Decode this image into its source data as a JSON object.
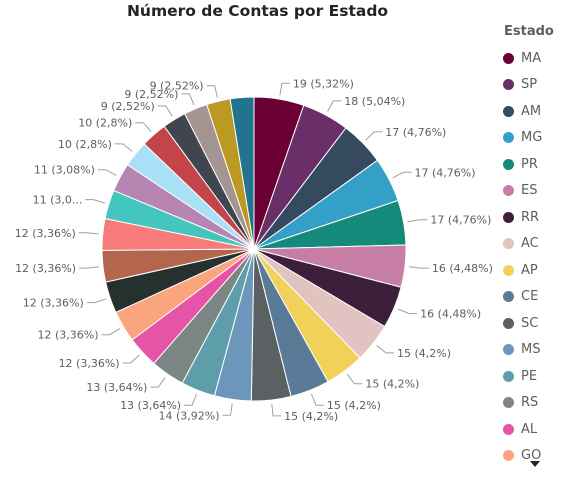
{
  "chart_data": {
    "type": "pie",
    "title": "Número de Contas por Estado",
    "legend_title": "Estado",
    "legend_position": "right",
    "slices": [
      {
        "label": "MA",
        "value": 19,
        "pct": "5,32%",
        "color": "#6b0035",
        "text": "19 (5,32%)"
      },
      {
        "label": "SP",
        "value": 18,
        "pct": "5,04%",
        "color": "#6a2f68",
        "text": "18 (5,04%)"
      },
      {
        "label": "AM",
        "value": 17,
        "pct": "4,76%",
        "color": "#354a5e",
        "text": "17 (4,76%)"
      },
      {
        "label": "MG",
        "value": 17,
        "pct": "4,76%",
        "color": "#34a0c8",
        "text": "17 (4,76%)"
      },
      {
        "label": "PR",
        "value": 17,
        "pct": "4,76%",
        "color": "#138a7a",
        "text": "17 (4,76%)"
      },
      {
        "label": "ES",
        "value": 16,
        "pct": "4,48%",
        "color": "#c77ea6",
        "text": "16 (4,48%)"
      },
      {
        "label": "RR",
        "value": 16,
        "pct": "4,48%",
        "color": "#3e1f3b",
        "text": "16 (4,48%)"
      },
      {
        "label": "AC",
        "value": 15,
        "pct": "4,2%",
        "color": "#e1c3c2",
        "text": "15 (4,2%)"
      },
      {
        "label": "AP",
        "value": 15,
        "pct": "4,2%",
        "color": "#f2d15a",
        "text": "15 (4,2%)"
      },
      {
        "label": "CE",
        "value": 15,
        "pct": "4,2%",
        "color": "#597b98",
        "text": "15 (4,2%)"
      },
      {
        "label": "SC",
        "value": 15,
        "pct": "4,2%",
        "color": "#5b6162",
        "text": "15 (4,2%)"
      },
      {
        "label": "MS",
        "value": 14,
        "pct": "3,92%",
        "color": "#6d96bd",
        "text": "14 (3,92%)"
      },
      {
        "label": "PE",
        "value": 13,
        "pct": "3,64%",
        "color": "#5e9eaa",
        "text": "13 (3,64%)"
      },
      {
        "label": "RS",
        "value": 13,
        "pct": "3,64%",
        "color": "#7c8785",
        "text": "13 (3,64%)"
      },
      {
        "label": "AL",
        "value": 12,
        "pct": "3,36%",
        "color": "#e654a8",
        "text": "12 (3,36%)"
      },
      {
        "label": "GO",
        "value": 12,
        "pct": "3,36%",
        "color": "#fba57f",
        "text": "12 (3,36%)"
      },
      {
        "label": "",
        "value": 12,
        "pct": "3,36%",
        "color": "#25302f",
        "text": "12 (3,36%)"
      },
      {
        "label": "",
        "value": 12,
        "pct": "3,36%",
        "color": "#b3664b",
        "text": "12 (3,36%)"
      },
      {
        "label": "",
        "value": 12,
        "pct": "3,36%",
        "color": "#f77b78",
        "text": "12 (3,36%)"
      },
      {
        "label": "",
        "value": 11,
        "pct": "3,08%",
        "color": "#44c6be",
        "text": "11 (3,0..."
      },
      {
        "label": "",
        "value": 11,
        "pct": "3,08%",
        "color": "#b685b2",
        "text": "11 (3,08%)"
      },
      {
        "label": "",
        "value": 10,
        "pct": "2,8%",
        "color": "#a8e1f5",
        "text": "10 (2,8%)"
      },
      {
        "label": "",
        "value": 10,
        "pct": "2,8%",
        "color": "#c3454a",
        "text": "10 (2,8%)"
      },
      {
        "label": "",
        "value": 9,
        "pct": "2,52%",
        "color": "#3f4650",
        "text": "9 (2,52%)"
      },
      {
        "label": "",
        "value": 9,
        "pct": "2,52%",
        "color": "#a59592",
        "text": "9 (2,52%)"
      },
      {
        "label": "",
        "value": 9,
        "pct": "2,52%",
        "color": "#bb9a23",
        "text": "9 (2,52%)"
      },
      {
        "label": "",
        "value": 9,
        "pct": "2,52%",
        "color": "#22738f",
        "text": ""
      }
    ]
  }
}
